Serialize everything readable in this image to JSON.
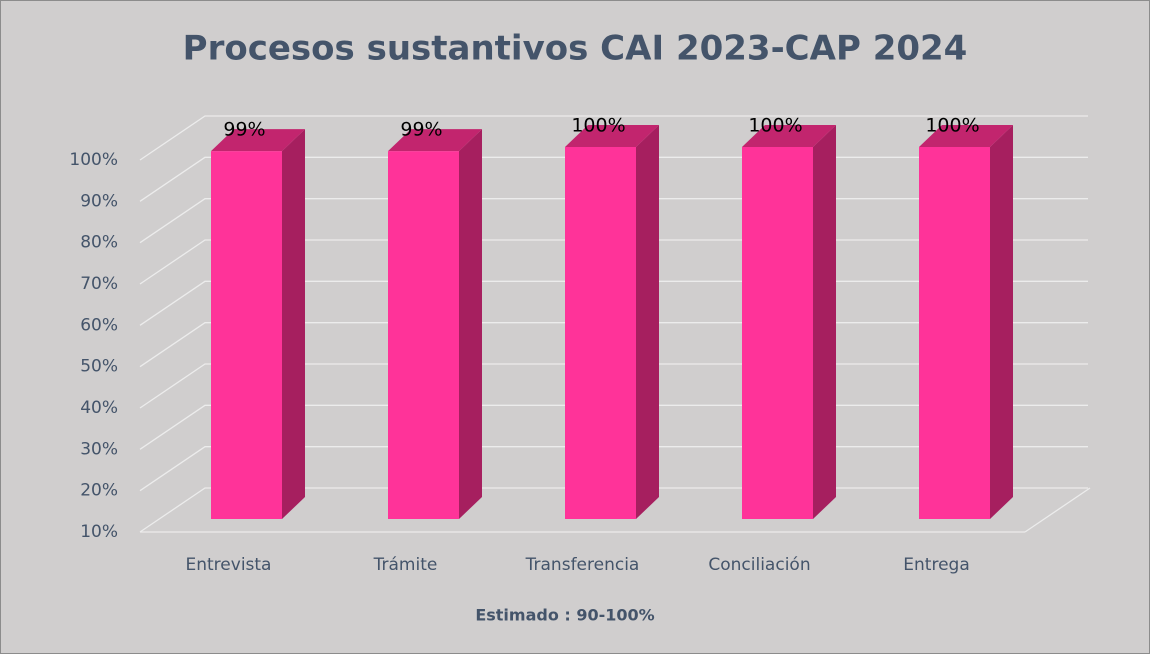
{
  "chart_data": {
    "type": "bar3d",
    "title": "Procesos sustantivos CAI 2023-CAP 2024",
    "x_label": "Estimado : 90-100%",
    "categories": [
      "Entrevista",
      "Trámite",
      "Transferencia",
      "Conciliación",
      "Entrega"
    ],
    "values": [
      99,
      99,
      100,
      100,
      100
    ],
    "value_labels": [
      "99%",
      "99%",
      "100%",
      "100%",
      "100%"
    ],
    "color": "#ff3399",
    "ylim": [
      10,
      100
    ],
    "yticks": [
      {
        "value": 10,
        "label": "10%"
      },
      {
        "value": 20,
        "label": "20%"
      },
      {
        "value": 30,
        "label": "30%"
      },
      {
        "value": 40,
        "label": "40%"
      },
      {
        "value": 50,
        "label": "50%"
      },
      {
        "value": 60,
        "label": "60%"
      },
      {
        "value": 70,
        "label": "70%"
      },
      {
        "value": 80,
        "label": "80%"
      },
      {
        "value": 90,
        "label": "90%"
      },
      {
        "value": 100,
        "label": "100%"
      }
    ],
    "grid": true
  }
}
